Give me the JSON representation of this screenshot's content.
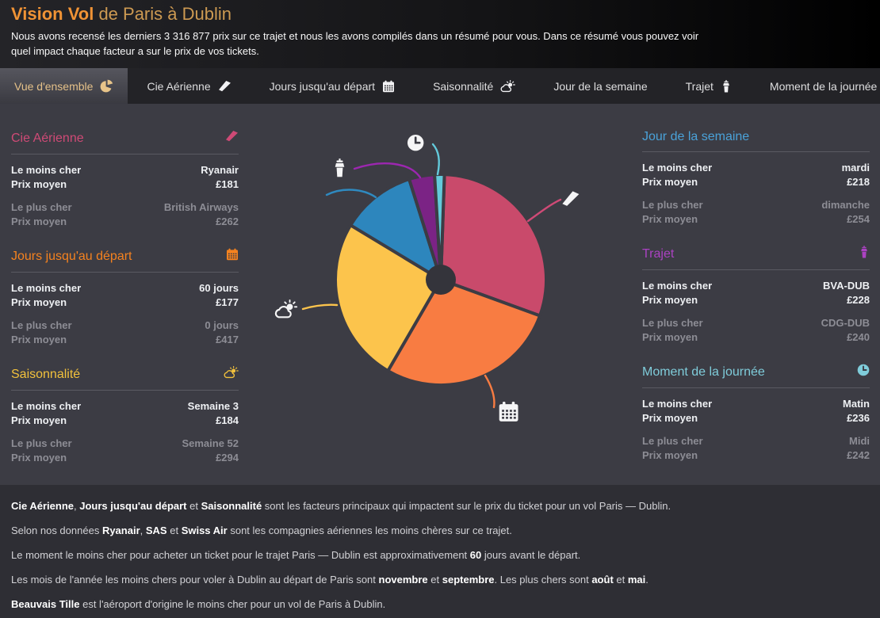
{
  "header": {
    "title_primary": "Vision Vol",
    "title_secondary": " de Paris à Dublin",
    "subtitle": "Nous avons recensé les derniers 3 316 877 prix sur ce trajet et nous les avons compilés dans un résumé pour vous. Dans ce résumé vous pouvez voir quel impact chaque facteur a sur le prix de vos tickets."
  },
  "tabs": [
    {
      "label": "Vue d'ensemble",
      "icon": "pie",
      "active": true
    },
    {
      "label": "Cie Aérienne",
      "icon": "wing",
      "active": false
    },
    {
      "label": "Jours jusqu'au départ",
      "icon": "calendar",
      "active": false
    },
    {
      "label": "Saisonnalité",
      "icon": "sun-cloud",
      "active": false
    },
    {
      "label": "Jour de la semaine",
      "icon": null,
      "active": false
    },
    {
      "label": "Trajet",
      "icon": "tower",
      "active": false
    },
    {
      "label": "Moment de la journée",
      "icon": "clock",
      "active": false
    }
  ],
  "panels": {
    "left": [
      {
        "id": "cie-aerienne",
        "title": "Cie Aérienne",
        "icon": "wing",
        "accent": "#cf4a76",
        "rows": [
          {
            "label": "Le moins cher",
            "value": "Ryanair",
            "muted": false
          },
          {
            "label": "Prix moyen",
            "value": "£181",
            "muted": false
          },
          {
            "label": "Le plus cher",
            "value": "British Airways",
            "muted": true
          },
          {
            "label": "Prix moyen",
            "value": "£262",
            "muted": true
          }
        ]
      },
      {
        "id": "jours-jusqu-au-depart",
        "title": "Jours jusqu'au départ",
        "icon": "calendar",
        "accent": "#f5821f",
        "rows": [
          {
            "label": "Le moins cher",
            "value": "60 jours",
            "muted": false
          },
          {
            "label": "Prix moyen",
            "value": "£177",
            "muted": false
          },
          {
            "label": "Le plus cher",
            "value": "0 jours",
            "muted": true
          },
          {
            "label": "Prix moyen",
            "value": "£417",
            "muted": true
          }
        ]
      },
      {
        "id": "saisonnalite",
        "title": "Saisonnalité",
        "icon": "sun-cloud",
        "accent": "#f2c13c",
        "rows": [
          {
            "label": "Le moins cher",
            "value": "Semaine 3",
            "muted": false
          },
          {
            "label": "Prix moyen",
            "value": "£184",
            "muted": false
          },
          {
            "label": "Le plus cher",
            "value": "Semaine 52",
            "muted": true
          },
          {
            "label": "Prix moyen",
            "value": "£294",
            "muted": true
          }
        ]
      }
    ],
    "right": [
      {
        "id": "jour-de-la-semaine",
        "title": "Jour de la semaine",
        "icon": null,
        "accent": "#4aa2d9",
        "rows": [
          {
            "label": "Le moins cher",
            "value": "mardi",
            "muted": false
          },
          {
            "label": "Prix moyen",
            "value": "£218",
            "muted": false
          },
          {
            "label": "Le plus cher",
            "value": "dimanche",
            "muted": true
          },
          {
            "label": "Prix moyen",
            "value": "£254",
            "muted": true
          }
        ]
      },
      {
        "id": "trajet",
        "title": "Trajet",
        "icon": "tower",
        "accent": "#ab42c2",
        "rows": [
          {
            "label": "Le moins cher",
            "value": "BVA-DUB",
            "muted": false
          },
          {
            "label": "Prix moyen",
            "value": "£228",
            "muted": false
          },
          {
            "label": "Le plus cher",
            "value": "CDG-DUB",
            "muted": true
          },
          {
            "label": "Prix moyen",
            "value": "£240",
            "muted": true
          }
        ]
      },
      {
        "id": "moment-de-la-journee",
        "title": "Moment de la journée",
        "icon": "clock",
        "accent": "#7fccda",
        "rows": [
          {
            "label": "Le moins cher",
            "value": "Matin",
            "muted": false
          },
          {
            "label": "Prix moyen",
            "value": "£236",
            "muted": false
          },
          {
            "label": "Le plus cher",
            "value": "Midi",
            "muted": true
          },
          {
            "label": "Prix moyen",
            "value": "£242",
            "muted": true
          }
        ]
      }
    ]
  },
  "chart_data": {
    "type": "pie",
    "title": "",
    "legend_position": "none",
    "start_angle_deg": 2,
    "slices": [
      {
        "label": "Cie Aérienne",
        "pct": 30.0,
        "color": "#c94a6b",
        "leader_color": "#cf4a76",
        "icon": "wing"
      },
      {
        "label": "Jours jusqu'au départ",
        "pct": 27.8,
        "color": "#f87c42",
        "leader_color": "#f87c42",
        "icon": "calendar"
      },
      {
        "label": "Saisonnalité",
        "pct": 25.3,
        "color": "#fcc44c",
        "leader_color": "#fcc44c",
        "icon": "sun-cloud"
      },
      {
        "label": "Jour de la semaine",
        "pct": 11.5,
        "color": "#2d86bd",
        "leader_color": "#2f8ac0",
        "icon": null
      },
      {
        "label": "Trajet",
        "pct": 3.9,
        "color": "#7b2385",
        "leader_color": "#9c27b0",
        "icon": "tower"
      },
      {
        "label": "Moment de la journée",
        "pct": 1.5,
        "color": "#63cadb",
        "leader_color": "#63cadb",
        "icon": "clock"
      }
    ]
  },
  "summary": {
    "lines": [
      [
        {
          "t": "Cie Aérienne",
          "b": true
        },
        {
          "t": ", ",
          "b": false
        },
        {
          "t": "Jours jusqu'au départ",
          "b": true
        },
        {
          "t": " et ",
          "b": false
        },
        {
          "t": "Saisonnalité",
          "b": true
        },
        {
          "t": " sont les facteurs principaux qui impactent sur le prix du ticket pour un vol Paris — Dublin.",
          "b": false
        }
      ],
      [
        {
          "t": "Selon nos données ",
          "b": false
        },
        {
          "t": "Ryanair",
          "b": true
        },
        {
          "t": ", ",
          "b": false
        },
        {
          "t": "SAS",
          "b": true
        },
        {
          "t": " et ",
          "b": false
        },
        {
          "t": "Swiss Air",
          "b": true
        },
        {
          "t": " sont les compagnies aériennes les moins chères sur ce trajet.",
          "b": false
        }
      ],
      [
        {
          "t": "Le moment le moins cher pour acheter un ticket pour le trajet Paris — Dublin est approximativement ",
          "b": false
        },
        {
          "t": "60",
          "b": true
        },
        {
          "t": " jours avant le départ.",
          "b": false
        }
      ],
      [
        {
          "t": "Les mois de l'année les moins chers pour voler à Dublin au départ de Paris sont ",
          "b": false
        },
        {
          "t": "novembre",
          "b": true
        },
        {
          "t": " et ",
          "b": false
        },
        {
          "t": "septembre",
          "b": true
        },
        {
          "t": ". Les plus chers sont ",
          "b": false
        },
        {
          "t": "août",
          "b": true
        },
        {
          "t": " et ",
          "b": false
        },
        {
          "t": "mai",
          "b": true
        },
        {
          "t": ".",
          "b": false
        }
      ],
      [
        {
          "t": "Beauvais Tille",
          "b": true
        },
        {
          "t": " est l'aéroport d'origine le moins cher pour un vol de Paris à Dublin.",
          "b": false
        }
      ]
    ]
  },
  "colors": {
    "background_main": "#3c3c44",
    "background_tabbar": "#232327",
    "background_summary": "#2e2e34",
    "active_tab_text": "#e5c189",
    "title_primary": "#f09335",
    "title_secondary": "#cd9a52",
    "muted_text": "#8d8d95"
  }
}
